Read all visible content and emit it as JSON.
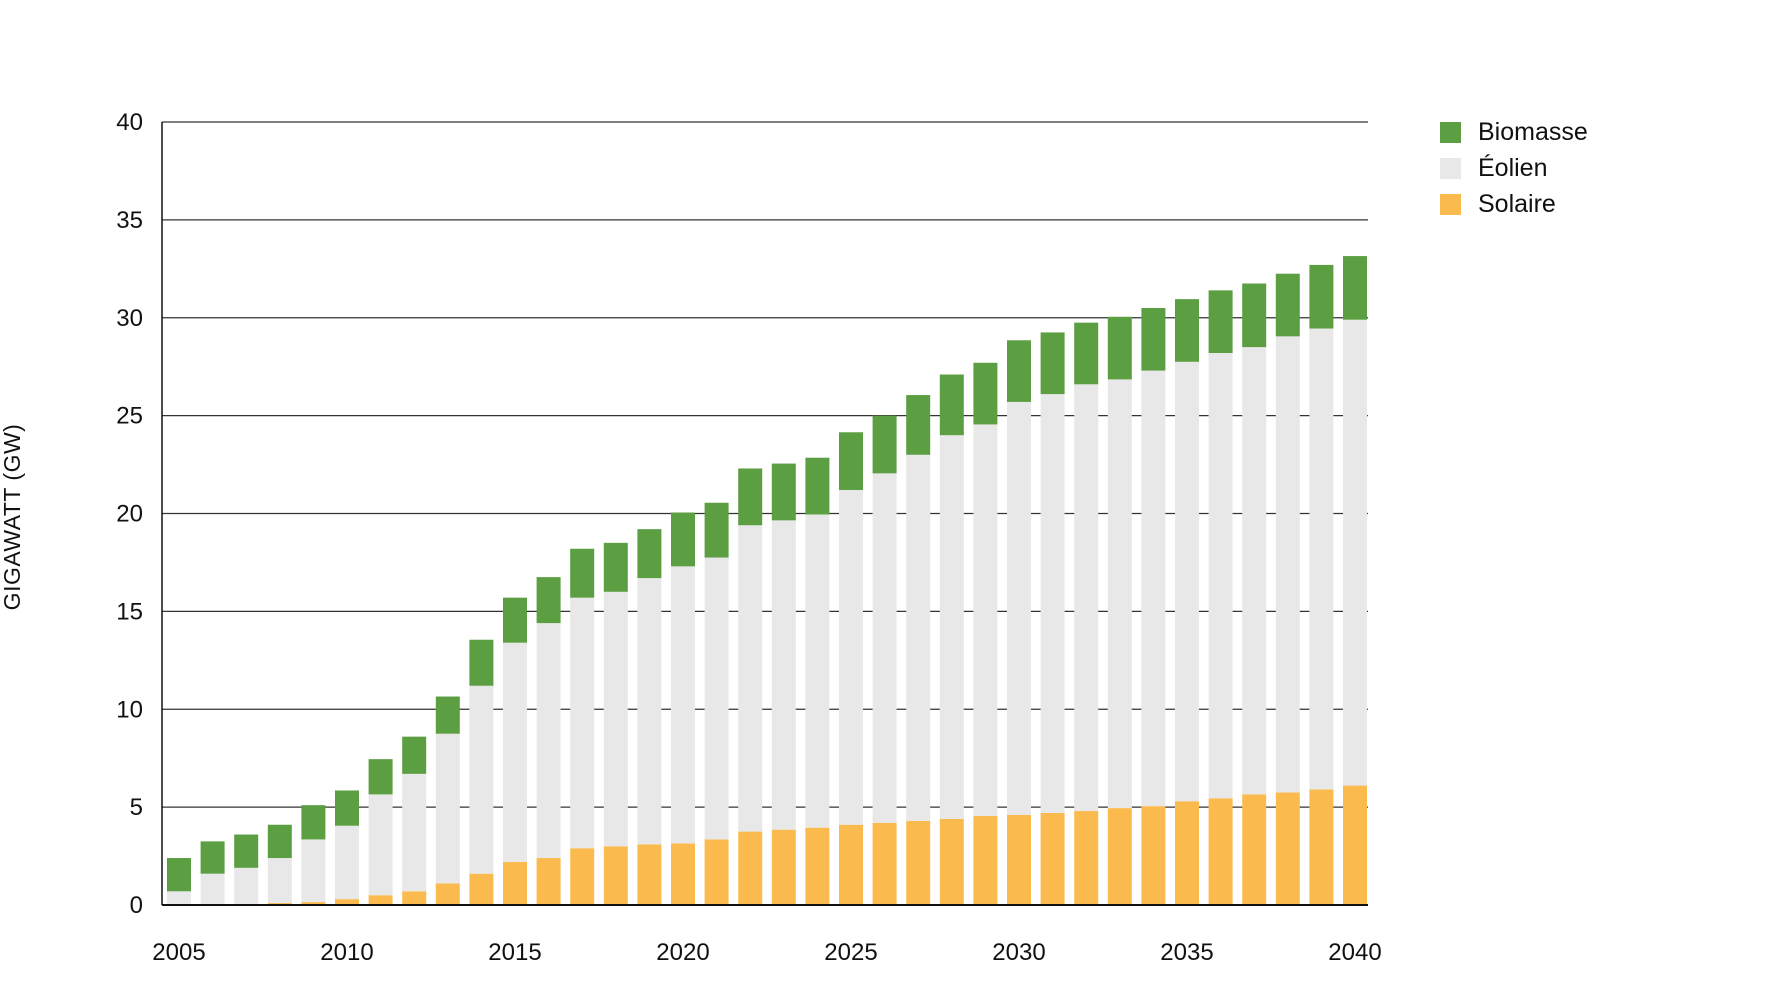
{
  "chart_data": {
    "type": "bar",
    "stacked": true,
    "ylabel": "GIGAWATT (GW)",
    "xlabel": "",
    "ylim": [
      0,
      40
    ],
    "yticks": [
      0,
      5,
      10,
      15,
      20,
      25,
      30,
      35,
      40
    ],
    "xtick_labels": [
      "2005",
      "2010",
      "2015",
      "2020",
      "2025",
      "2030",
      "2035",
      "2040"
    ],
    "grid": true,
    "legend_position": "top-right",
    "categories": [
      "2005",
      "2006",
      "2007",
      "2008",
      "2009",
      "2010",
      "2011",
      "2012",
      "2013",
      "2014",
      "2015",
      "2016",
      "2017",
      "2018",
      "2019",
      "2020",
      "2021",
      "2022",
      "2023",
      "2024",
      "2025",
      "2026",
      "2027",
      "2028",
      "2029",
      "2030",
      "2031",
      "2032",
      "2033",
      "2034",
      "2035",
      "2036",
      "2037",
      "2038",
      "2039",
      "2040"
    ],
    "series": [
      {
        "name": "Solaire",
        "color": "#FBBA4E",
        "values": [
          0.0,
          0.0,
          0.05,
          0.1,
          0.15,
          0.3,
          0.5,
          0.7,
          1.1,
          1.6,
          2.2,
          2.4,
          2.9,
          3.0,
          3.1,
          3.15,
          3.35,
          3.75,
          3.85,
          3.95,
          4.1,
          4.2,
          4.3,
          4.4,
          4.55,
          4.6,
          4.7,
          4.8,
          4.95,
          5.05,
          5.3,
          5.45,
          5.65,
          5.75,
          5.9,
          6.1
        ]
      },
      {
        "name": "Éolien",
        "color": "#E8E8E8",
        "values": [
          0.7,
          1.6,
          1.85,
          2.3,
          3.2,
          3.75,
          5.15,
          6.0,
          7.65,
          9.6,
          11.2,
          12.0,
          12.8,
          13.0,
          13.6,
          14.15,
          14.4,
          15.65,
          15.8,
          16.0,
          17.1,
          17.85,
          18.7,
          19.6,
          20.0,
          21.1,
          21.4,
          21.8,
          21.9,
          22.25,
          22.45,
          22.75,
          22.85,
          23.3,
          23.55,
          23.8
        ]
      },
      {
        "name": "Biomasse",
        "color": "#5C9E42",
        "values": [
          1.7,
          1.65,
          1.7,
          1.7,
          1.75,
          1.8,
          1.8,
          1.9,
          1.9,
          2.35,
          2.3,
          2.35,
          2.5,
          2.5,
          2.5,
          2.75,
          2.8,
          2.9,
          2.9,
          2.9,
          2.95,
          2.95,
          3.05,
          3.1,
          3.15,
          3.15,
          3.15,
          3.15,
          3.2,
          3.2,
          3.2,
          3.2,
          3.25,
          3.2,
          3.25,
          3.25
        ]
      }
    ]
  },
  "legend": {
    "items": [
      {
        "label": "Biomasse",
        "color": "#5C9E42"
      },
      {
        "label": "Éolien",
        "color": "#E8E8E8"
      },
      {
        "label": "Solaire",
        "color": "#FBBA4E"
      }
    ]
  }
}
